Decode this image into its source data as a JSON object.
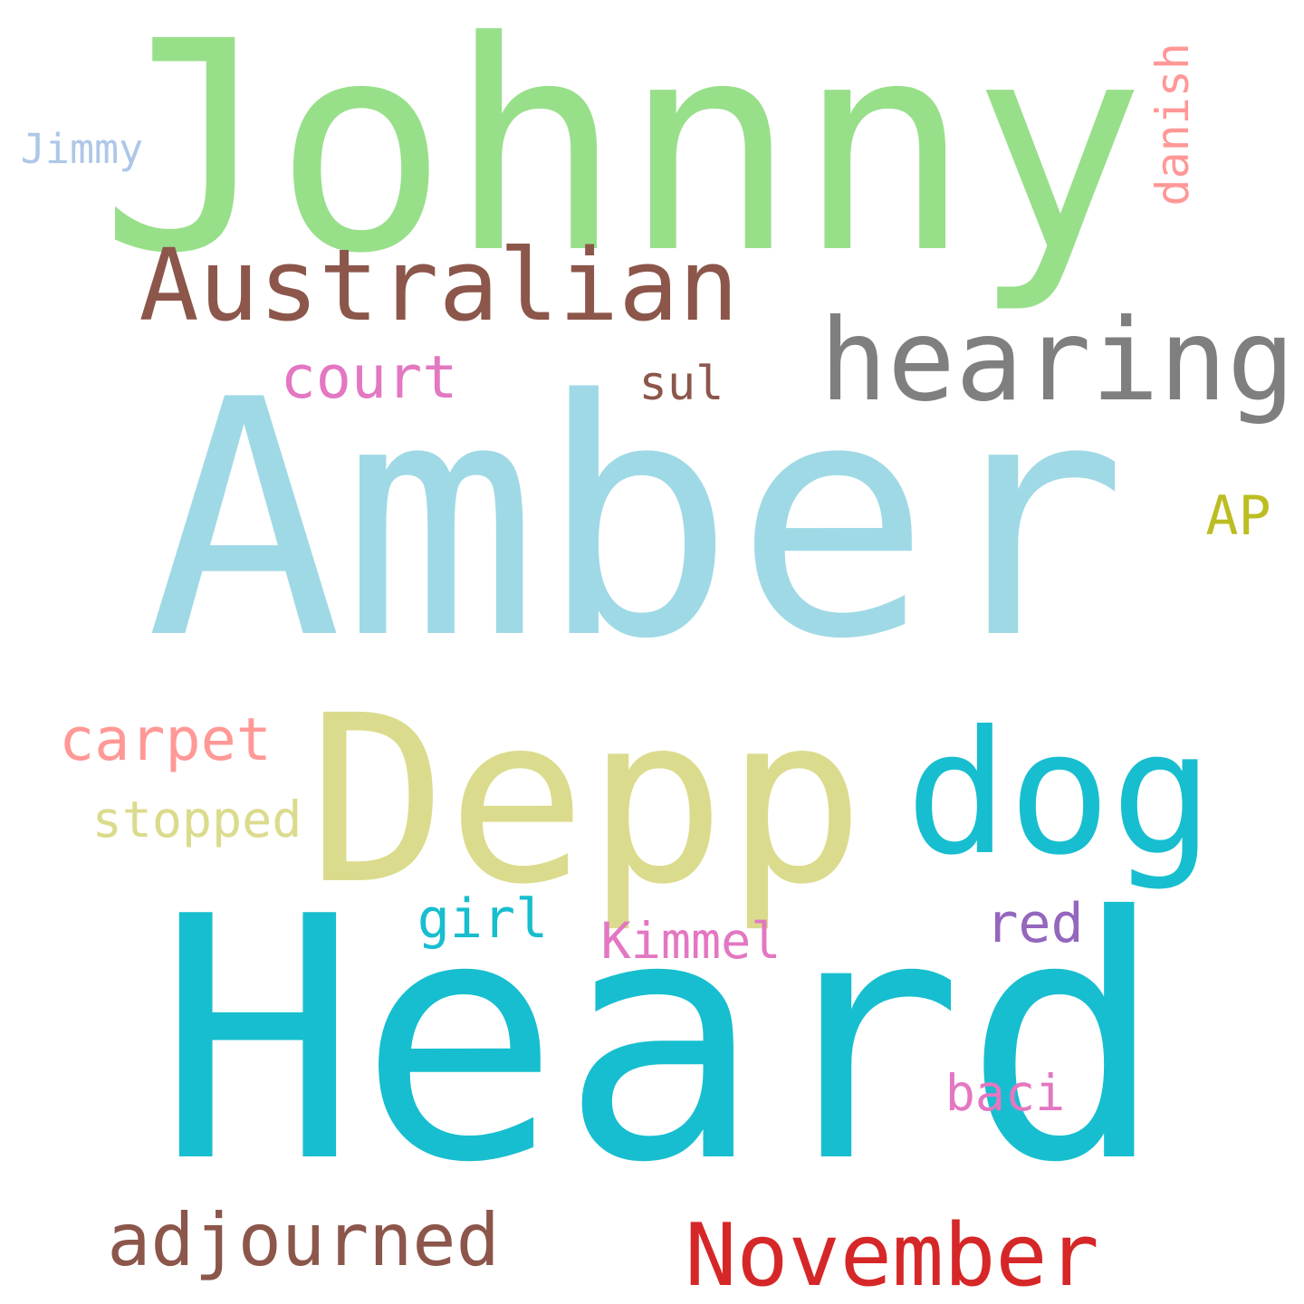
{
  "words": [
    {
      "text": "Amber",
      "color": "#9fd9e5"
    },
    {
      "text": "Heard",
      "color": "#17becf"
    },
    {
      "text": "Johnny",
      "color": "#98df8a"
    },
    {
      "text": "Depp",
      "color": "#dbdb8d"
    },
    {
      "text": "dog",
      "color": "#17becf"
    },
    {
      "text": "Australian",
      "color": "#8c564b"
    },
    {
      "text": "hearing",
      "color": "#7f7f7f"
    },
    {
      "text": "November",
      "color": "#d62728"
    },
    {
      "text": "adjourned",
      "color": "#8c564b"
    },
    {
      "text": "court",
      "color": "#e377c2"
    },
    {
      "text": "carpet",
      "color": "#ff9896"
    },
    {
      "text": "red",
      "color": "#9467bd"
    },
    {
      "text": "AP",
      "color": "#bcbd22"
    },
    {
      "text": "girl",
      "color": "#17becf"
    },
    {
      "text": "stopped",
      "color": "#dbdb8d"
    },
    {
      "text": "sul",
      "color": "#8c564b"
    },
    {
      "text": "Kimmel",
      "color": "#e377c2"
    },
    {
      "text": "baci",
      "color": "#e377c2"
    },
    {
      "text": "Jimmy",
      "color": "#aec7e8"
    },
    {
      "text": "danish",
      "color": "#ff9896"
    }
  ]
}
